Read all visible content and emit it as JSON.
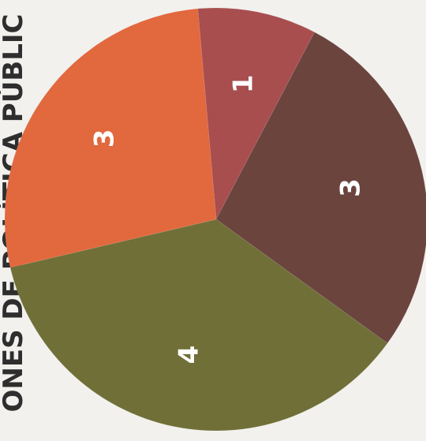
{
  "page": {
    "side_title": "ONES DE POLÍTICA PÚBLIC"
  },
  "chart_data": {
    "type": "pie",
    "categories": [
      "",
      "",
      "",
      ""
    ],
    "values": [
      1,
      3,
      4,
      3
    ],
    "labels": [
      "1",
      "3",
      "4",
      "3"
    ],
    "colors": [
      "#a84e4f",
      "#6b443e",
      "#6f6f37",
      "#e2683d"
    ],
    "legend": "none"
  }
}
